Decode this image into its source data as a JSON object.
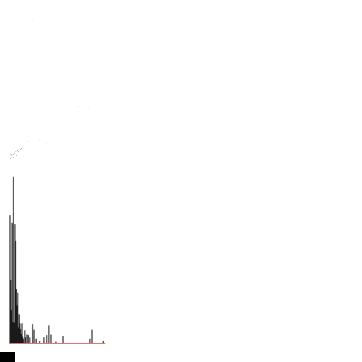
{
  "theme": {
    "bar_color": "#1a1a1a",
    "baseline_color": "#c0392b",
    "speck_color": "#555555",
    "corner_block_color": "#000000"
  },
  "chart_data": {
    "type": "bar",
    "title": "",
    "xlabel": "",
    "ylabel": "",
    "grid": false,
    "legend": "none",
    "xlim": [
      0,
      136
    ],
    "ylim": [
      0,
      240
    ],
    "bars": [
      {
        "x": 1,
        "value": 183
      },
      {
        "x": 2,
        "value": 90
      },
      {
        "x": 3,
        "value": 47
      },
      {
        "x": 4,
        "value": 172
      },
      {
        "x": 5,
        "value": 30
      },
      {
        "x": 6,
        "value": 238
      },
      {
        "x": 7,
        "value": 29
      },
      {
        "x": 8,
        "value": 170
      },
      {
        "x": 9,
        "value": 146
      },
      {
        "x": 10,
        "value": 77
      },
      {
        "x": 11,
        "value": 54
      },
      {
        "x": 12,
        "value": 72
      },
      {
        "x": 13,
        "value": 22
      },
      {
        "x": 14,
        "value": 41
      },
      {
        "x": 15,
        "value": 28
      },
      {
        "x": 16,
        "value": 20
      },
      {
        "x": 17,
        "value": 13
      },
      {
        "x": 18,
        "value": 28
      },
      {
        "x": 19,
        "value": 9
      },
      {
        "x": 20,
        "value": 6
      },
      {
        "x": 22,
        "value": 18
      },
      {
        "x": 23,
        "value": 8
      },
      {
        "x": 25,
        "value": 12
      },
      {
        "x": 27,
        "value": 11
      },
      {
        "x": 29,
        "value": 8
      },
      {
        "x": 33,
        "value": 27
      },
      {
        "x": 35,
        "value": 19
      },
      {
        "x": 38,
        "value": 6
      },
      {
        "x": 43,
        "value": 3
      },
      {
        "x": 49,
        "value": 8
      },
      {
        "x": 53,
        "value": 11
      },
      {
        "x": 56,
        "value": 25
      },
      {
        "x": 59,
        "value": 12
      },
      {
        "x": 66,
        "value": 2
      },
      {
        "x": 76,
        "value": 10
      },
      {
        "x": 114,
        "value": 6
      },
      {
        "x": 117,
        "value": 19
      },
      {
        "x": 133,
        "value": 3
      }
    ]
  }
}
